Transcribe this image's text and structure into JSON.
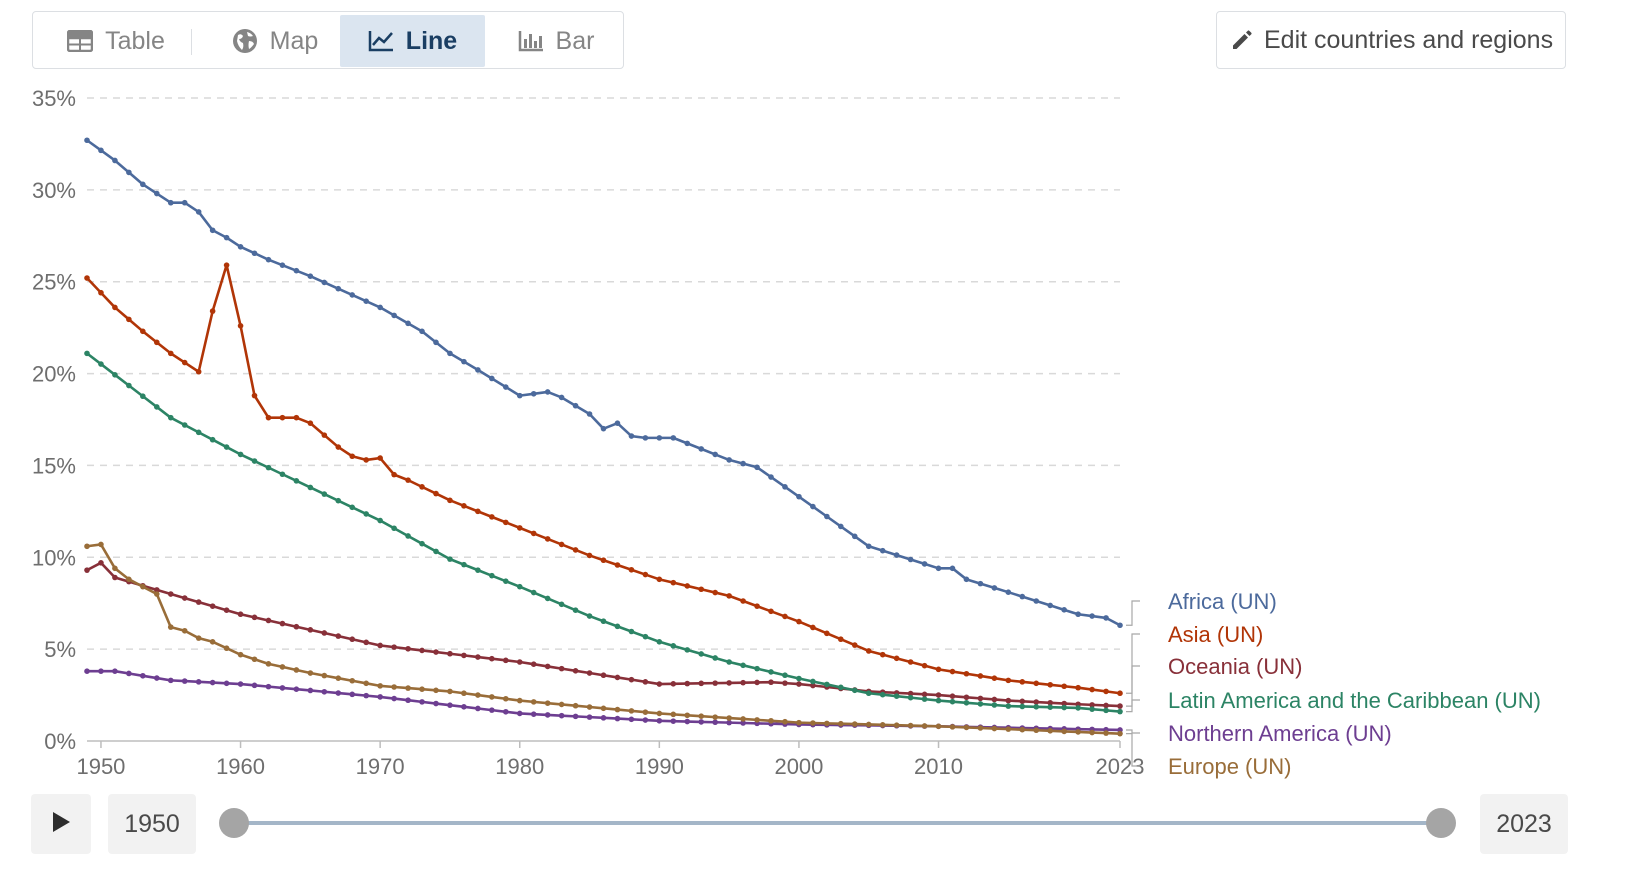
{
  "toolbar": {
    "tabs": [
      {
        "label": "Table",
        "icon": "table-icon"
      },
      {
        "label": "Map",
        "icon": "globe-icon"
      },
      {
        "label": "Line",
        "icon": "line-chart-icon",
        "active": true
      },
      {
        "label": "Bar",
        "icon": "bar-chart-icon"
      }
    ],
    "edit_label": "Edit countries and regions"
  },
  "timeline": {
    "start_year": "1950",
    "end_year": "2023",
    "start_fraction": 0,
    "end_fraction": 1
  },
  "chart_data": {
    "type": "line",
    "x_ticks": [
      "1950",
      "1960",
      "1970",
      "1980",
      "1990",
      "2000",
      "2010",
      "2023"
    ],
    "y_ticks": [
      "0%",
      "5%",
      "10%",
      "15%",
      "20%",
      "25%",
      "30%",
      "35%"
    ],
    "xlim": [
      1949,
      2023
    ],
    "ylim": [
      0,
      35
    ],
    "grid": "horizontal dashed",
    "legend": "right, labels at line ends",
    "series": [
      {
        "name": "Africa (UN)",
        "color": "#4c6a9c",
        "x": [
          1949,
          1951,
          1953,
          1955,
          1956,
          1957,
          1958,
          1959,
          1960,
          1962,
          1965,
          1970,
          1973,
          1975,
          1977,
          1980,
          1982,
          1983,
          1985,
          1986,
          1987,
          1988,
          1989,
          1991,
          1993,
          1995,
          1997,
          2000,
          2005,
          2010,
          2011,
          2012,
          2015,
          2020,
          2022,
          2023
        ],
        "y": [
          32.7,
          31.6,
          30.3,
          29.3,
          29.3,
          28.8,
          27.8,
          27.4,
          26.9,
          26.2,
          25.3,
          23.6,
          22.3,
          21.1,
          20.2,
          18.8,
          19.0,
          18.7,
          17.8,
          17.0,
          17.3,
          16.6,
          16.5,
          16.5,
          15.9,
          15.3,
          14.9,
          13.3,
          10.6,
          9.4,
          9.4,
          8.8,
          8.1,
          6.9,
          6.7,
          6.3
        ]
      },
      {
        "name": "Asia (UN)",
        "color": "#b13507",
        "x": [
          1949,
          1951,
          1953,
          1955,
          1957,
          1958,
          1959,
          1960,
          1961,
          1962,
          1964,
          1965,
          1967,
          1968,
          1969,
          1970,
          1971,
          1972,
          1975,
          1980,
          1985,
          1990,
          1995,
          2000,
          2005,
          2010,
          2015,
          2020,
          2023
        ],
        "y": [
          25.2,
          23.6,
          22.3,
          21.1,
          20.1,
          23.4,
          25.9,
          22.6,
          18.8,
          17.6,
          17.6,
          17.3,
          16.0,
          15.5,
          15.3,
          15.4,
          14.5,
          14.2,
          13.1,
          11.6,
          10.1,
          8.8,
          7.9,
          6.5,
          4.9,
          3.9,
          3.3,
          2.9,
          2.6
        ]
      },
      {
        "name": "Oceania (UN)",
        "color": "#883039",
        "x": [
          1949,
          1950,
          1951,
          1955,
          1960,
          1970,
          1980,
          1990,
          1998,
          2000,
          2005,
          2010,
          2015,
          2020,
          2023
        ],
        "y": [
          9.3,
          9.7,
          8.9,
          8.0,
          6.9,
          5.2,
          4.3,
          3.1,
          3.2,
          3.1,
          2.7,
          2.5,
          2.2,
          2.0,
          1.9
        ]
      },
      {
        "name": "Latin America and the Caribbean (UN)",
        "color": "#2c8465",
        "x": [
          1949,
          1955,
          1960,
          1965,
          1970,
          1975,
          1980,
          1985,
          1990,
          1995,
          2000,
          2005,
          2010,
          2015,
          2020,
          2023
        ],
        "y": [
          21.1,
          17.6,
          15.6,
          13.8,
          12.0,
          9.9,
          8.4,
          6.8,
          5.4,
          4.3,
          3.4,
          2.6,
          2.2,
          1.9,
          1.8,
          1.6
        ]
      },
      {
        "name": "Northern America (UN)",
        "color": "#6d3e91",
        "x": [
          1949,
          1950,
          1951,
          1955,
          1960,
          1970,
          1980,
          1990,
          2000,
          2010,
          2023
        ],
        "y": [
          3.8,
          3.8,
          3.8,
          3.3,
          3.1,
          2.4,
          1.5,
          1.1,
          0.9,
          0.8,
          0.6
        ]
      },
      {
        "name": "Europe (UN)",
        "color": "#996d39",
        "x": [
          1949,
          1950,
          1951,
          1952,
          1953,
          1954,
          1955,
          1956,
          1957,
          1958,
          1960,
          1962,
          1965,
          1970,
          1975,
          1980,
          1990,
          2000,
          2010,
          2023
        ],
        "y": [
          10.6,
          10.7,
          9.4,
          8.8,
          8.4,
          8.0,
          6.2,
          6.0,
          5.6,
          5.4,
          4.7,
          4.2,
          3.7,
          3.0,
          2.7,
          2.2,
          1.5,
          1.0,
          0.8,
          0.4
        ]
      }
    ]
  }
}
